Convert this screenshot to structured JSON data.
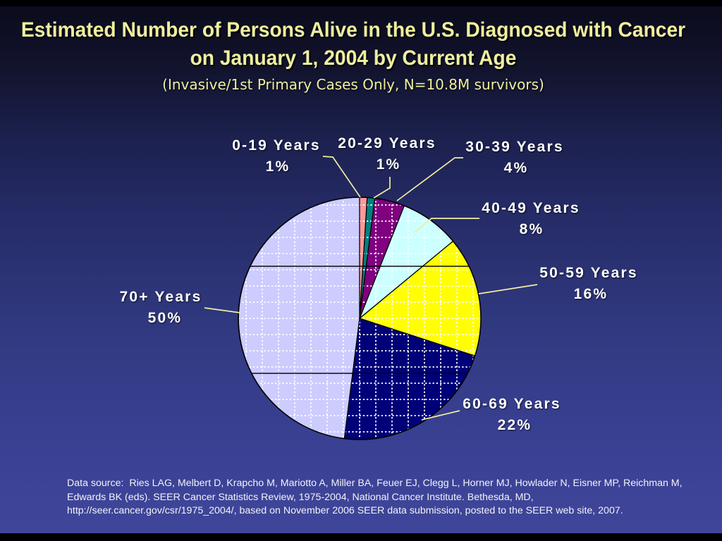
{
  "title": {
    "line1": "Estimated Number of Persons Alive in the U.S. Diagnosed with Cancer",
    "line2": "on January 1, 2004 by Current Age",
    "subtitle": "(Invasive/1st Primary Cases Only, N=10.8M survivors)"
  },
  "chart_data": {
    "type": "pie",
    "title": "Estimated Number of Persons Alive in the U.S. Diagnosed with Cancer on January 1, 2004 by Current Age",
    "unit": "percent of survivors",
    "slices": [
      {
        "label": "0-19 Years",
        "pct_label": "1%",
        "value": 1,
        "color": "#ff9999"
      },
      {
        "label": "20-29 Years",
        "pct_label": "1%",
        "value": 1,
        "color": "#008080"
      },
      {
        "label": "30-39 Years",
        "pct_label": "4%",
        "value": 4,
        "color": "#800080"
      },
      {
        "label": "40-49 Years",
        "pct_label": "8%",
        "value": 8,
        "color": "#ccffff"
      },
      {
        "label": "50-59 Years",
        "pct_label": "16%",
        "value": 16,
        "color": "#ffff00"
      },
      {
        "label": "60-69 Years",
        "pct_label": "22%",
        "value": 22,
        "color": "#000078"
      },
      {
        "label": "70+ Years",
        "pct_label": "50%",
        "value": 50,
        "color": "#ccccff"
      }
    ],
    "start_angle_deg": 0,
    "clockwise": true,
    "pattern": "dotted-grid",
    "pattern_color": "#ffffff",
    "outline_color": "#000000",
    "leader_line_color": "#efef9e",
    "label_color": "#ffffff",
    "title_color": "#efef9e"
  },
  "source_note": {
    "line1": "Data source:  Ries LAG, Melbert D, Krapcho M, Mariotto A, Miller BA, Feuer EJ, Clegg L, Horner MJ, Howlader N, Eisner MP, Reichman M,",
    "line2": "Edwards BK (eds). SEER Cancer Statistics Review, 1975-2004, National Cancer Institute. Bethesda, MD,",
    "line3": "http://seer.cancer.gov/csr/1975_2004/, based on November 2006 SEER data submission, posted to the SEER web site, 2007."
  }
}
